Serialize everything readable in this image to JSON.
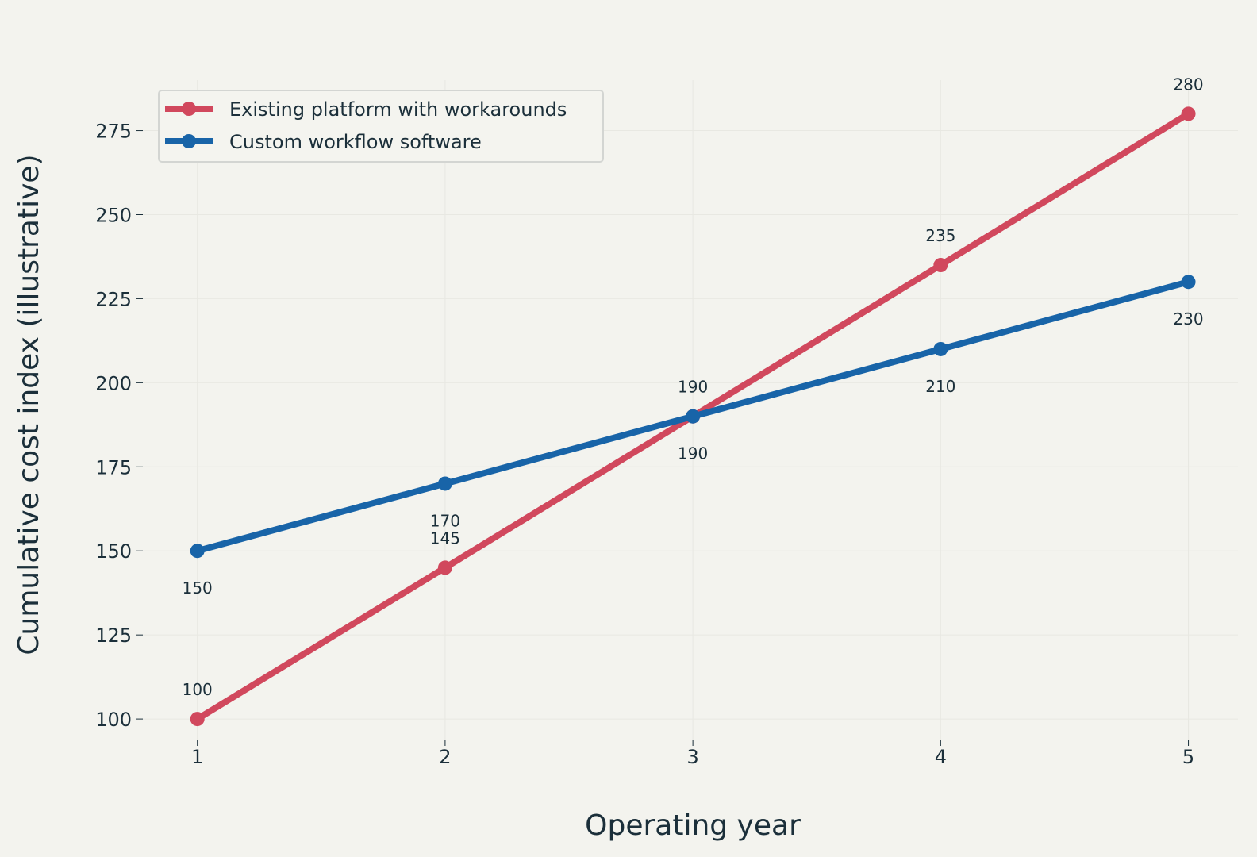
{
  "chart_data": {
    "type": "line",
    "title": "",
    "xlabel": "Operating year",
    "ylabel": "Cumulative cost index (illustrative)",
    "x": [
      1,
      2,
      3,
      4,
      5
    ],
    "x_tick_labels": [
      "1",
      "2",
      "3",
      "4",
      "5"
    ],
    "xlim": [
      0.78,
      5.2
    ],
    "ylim": [
      92,
      290
    ],
    "y_ticks": [
      100,
      125,
      150,
      175,
      200,
      225,
      250,
      275
    ],
    "y_tick_labels": [
      "100",
      "125",
      "150",
      "175",
      "200",
      "225",
      "250",
      "275"
    ],
    "grid": true,
    "legend_position": "top-left",
    "series": [
      {
        "name": "Existing platform with workarounds",
        "color": "#d1485d",
        "values": [
          100,
          145,
          190,
          235,
          280
        ],
        "labels": [
          "100",
          "145",
          "190",
          "235",
          "280"
        ],
        "label_position": "above"
      },
      {
        "name": "Custom workflow software",
        "color": "#1864a8",
        "values": [
          150,
          170,
          190,
          210,
          230
        ],
        "labels": [
          "150",
          "170",
          "190",
          "210",
          "230"
        ],
        "label_position": "below"
      }
    ],
    "colors": {
      "background": "#f3f3ee",
      "grid": "#e8e8e2",
      "text": "#1b2f3a",
      "legend_border": "#d3d5d2",
      "legend_background": "#f4f4ef"
    }
  }
}
